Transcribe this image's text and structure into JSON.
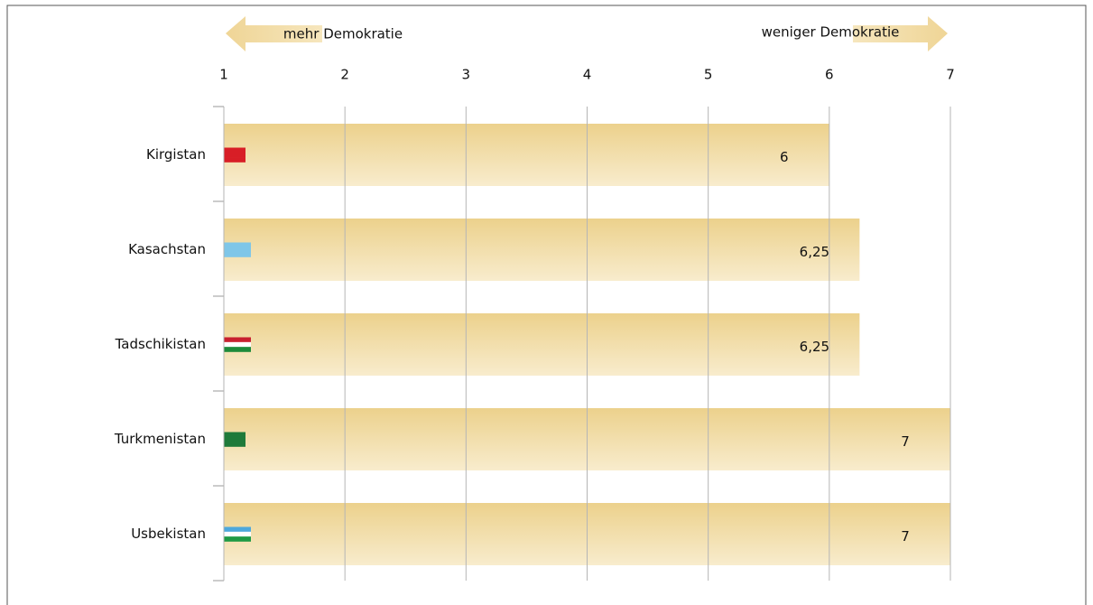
{
  "chart_data": {
    "type": "bar",
    "orientation": "horizontal",
    "annotations": [
      "mehr Demokratie",
      "weniger Demokratie"
    ],
    "categories": [
      "Kirgistan",
      "Kasachstan",
      "Tadschikistan",
      "Turkmenistan",
      "Usbekistan"
    ],
    "values": [
      6,
      6.25,
      6.25,
      7,
      7
    ],
    "value_labels": [
      "6",
      "6,25",
      "6,25",
      "7",
      "7"
    ],
    "xlim": [
      1,
      7
    ],
    "xticks": [
      1,
      2,
      3,
      4,
      5,
      6,
      7
    ],
    "grid": true
  }
}
